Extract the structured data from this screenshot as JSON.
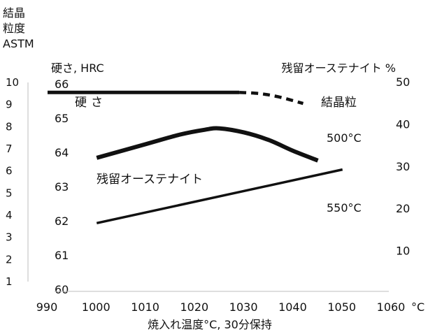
{
  "chart_data": {
    "type": "line",
    "xlabel": "焼入れ温度°C, 30分保持",
    "x_unit": "°C",
    "x_ticks": [
      990,
      1000,
      1010,
      1020,
      1030,
      1040,
      1050,
      1060
    ],
    "xlim": [
      990,
      1060
    ],
    "y_axes": {
      "grain": {
        "label": "結晶粒度ASTM",
        "label_lines": [
          "結晶",
          "粒度",
          "ASTM"
        ],
        "ticks": [
          1,
          2,
          3,
          4,
          5,
          6,
          7,
          8,
          9,
          10
        ],
        "ylim": [
          1,
          10
        ]
      },
      "hardness": {
        "label": "硬さ, HRC",
        "ticks": [
          60,
          61,
          62,
          63,
          64,
          65,
          66
        ],
        "ylim": [
          60,
          66
        ]
      },
      "retained_austenite": {
        "label": "残留オーステナイト %",
        "ticks": [
          10,
          20,
          30,
          40,
          50
        ],
        "ylim": [
          0,
          50
        ]
      }
    },
    "series": [
      {
        "name": "結晶粒",
        "axis": "grain",
        "x": [
          990,
          1029
        ],
        "y": [
          9.55,
          9.55
        ],
        "dashed_x": [
          1029,
          1033,
          1037,
          1042
        ],
        "dashed_y": [
          9.55,
          9.5,
          9.35,
          9.05
        ]
      },
      {
        "name": "硬さ",
        "axis": "hardness",
        "x": [
          1000,
          1010,
          1017,
          1022,
          1025,
          1030,
          1035,
          1040,
          1045
        ],
        "y": [
          63.84,
          64.24,
          64.52,
          64.66,
          64.7,
          64.58,
          64.36,
          64.04,
          63.76
        ]
      },
      {
        "name": "残留オーステナイト",
        "axis": "retained_austenite",
        "x": [
          1000,
          1050
        ],
        "y": [
          16.5,
          29.2
        ]
      }
    ],
    "annotations": [
      {
        "text": "500°C",
        "axis": "retained_austenite",
        "x": 1048,
        "y": 37.3
      },
      {
        "text": "550°C",
        "axis": "retained_austenite",
        "x": 1048,
        "y": 19.8
      }
    ]
  }
}
